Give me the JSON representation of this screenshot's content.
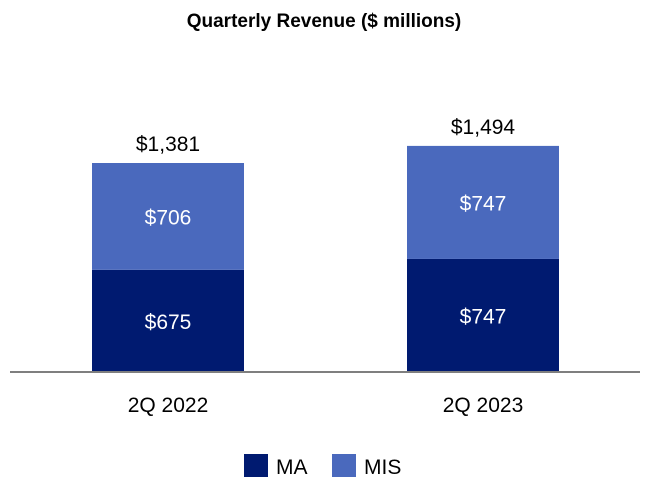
{
  "chart_data": {
    "type": "bar",
    "stacked": true,
    "title": "Quarterly Revenue ($ millions)",
    "categories": [
      "2Q 2022",
      "2Q 2023"
    ],
    "series": [
      {
        "name": "MA",
        "values": [
          675,
          747
        ],
        "labels": [
          "$675",
          "$747"
        ],
        "color": "#001a70"
      },
      {
        "name": "MIS",
        "values": [
          706,
          747
        ],
        "labels": [
          "$706",
          "$747"
        ],
        "color": "#4a69bd"
      }
    ],
    "totals": [
      1381,
      1494
    ],
    "total_labels": [
      "$1,381",
      "$1,494"
    ],
    "legend": "bottom",
    "grid": false
  }
}
